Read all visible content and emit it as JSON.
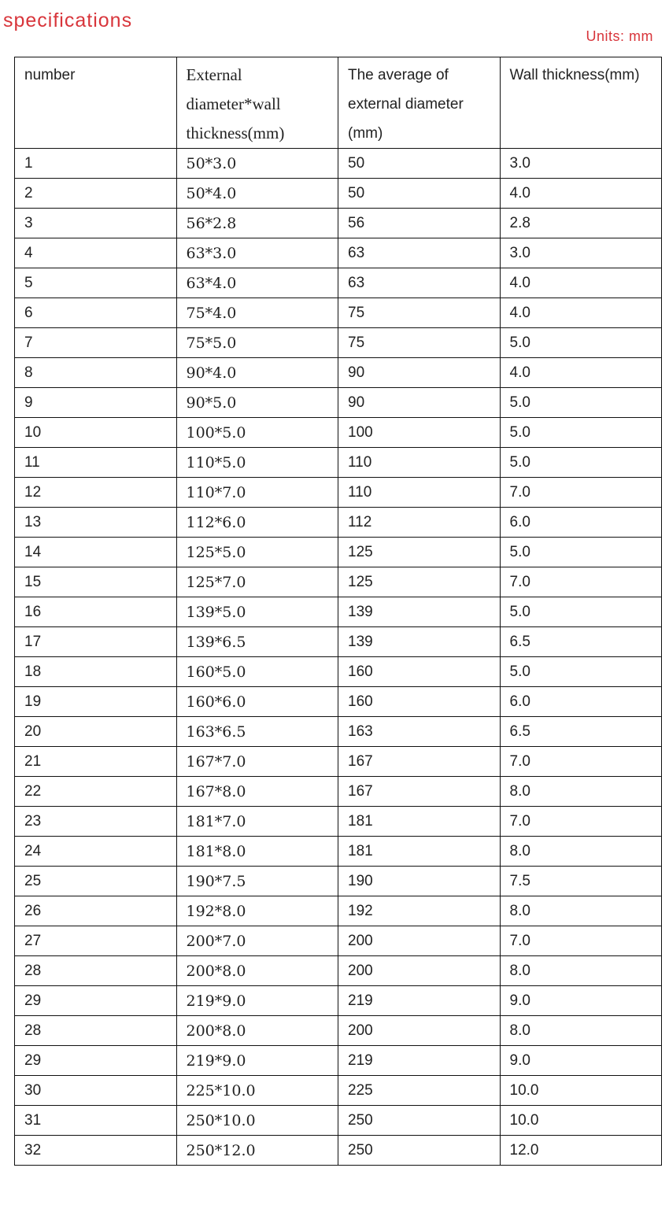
{
  "title": "specifications",
  "units": "Units: mm",
  "table": {
    "headers": [
      "number",
      "External diameter*wall thickness(mm)",
      "The average of external diameter (mm)",
      "Wall thickness(mm)"
    ],
    "rows": [
      [
        "1",
        "50*3.0",
        "50",
        "3.0"
      ],
      [
        "2",
        "50*4.0",
        "50",
        "4.0"
      ],
      [
        "3",
        "56*2.8",
        "56",
        "2.8"
      ],
      [
        "4",
        "63*3.0",
        "63",
        "3.0"
      ],
      [
        "5",
        "63*4.0",
        "63",
        "4.0"
      ],
      [
        "6",
        "75*4.0",
        "75",
        "4.0"
      ],
      [
        "7",
        "75*5.0",
        "75",
        "5.0"
      ],
      [
        "8",
        "90*4.0",
        "90",
        "4.0"
      ],
      [
        "9",
        "90*5.0",
        "90",
        "5.0"
      ],
      [
        "10",
        "100*5.0",
        "100",
        "5.0"
      ],
      [
        "11",
        "110*5.0",
        "110",
        "5.0"
      ],
      [
        "12",
        "110*7.0",
        "110",
        "7.0"
      ],
      [
        "13",
        "112*6.0",
        "112",
        "6.0"
      ],
      [
        "14",
        "125*5.0",
        "125",
        "5.0"
      ],
      [
        "15",
        "125*7.0",
        "125",
        "7.0"
      ],
      [
        "16",
        "139*5.0",
        "139",
        "5.0"
      ],
      [
        "17",
        "139*6.5",
        "139",
        "6.5"
      ],
      [
        "18",
        "160*5.0",
        "160",
        "5.0"
      ],
      [
        "19",
        "160*6.0",
        "160",
        "6.0"
      ],
      [
        "20",
        "163*6.5",
        "163",
        "6.5"
      ],
      [
        "21",
        "167*7.0",
        "167",
        "7.0"
      ],
      [
        "22",
        "167*8.0",
        "167",
        "8.0"
      ],
      [
        "23",
        "181*7.0",
        "181",
        "7.0"
      ],
      [
        "24",
        "181*8.0",
        "181",
        "8.0"
      ],
      [
        "25",
        "190*7.5",
        "190",
        "7.5"
      ],
      [
        "26",
        "192*8.0",
        "192",
        "8.0"
      ],
      [
        "27",
        "200*7.0",
        "200",
        "7.0"
      ],
      [
        "28",
        "200*8.0",
        "200",
        "8.0"
      ],
      [
        "29",
        "219*9.0",
        "219",
        "9.0"
      ],
      [
        "28",
        "200*8.0",
        "200",
        "8.0"
      ],
      [
        "29",
        "219*9.0",
        "219",
        "9.0"
      ],
      [
        "30",
        "225*10.0",
        "225",
        "10.0"
      ],
      [
        "31",
        "250*10.0",
        "250",
        "10.0"
      ],
      [
        "32",
        "250*12.0",
        "250",
        "12.0"
      ]
    ]
  }
}
